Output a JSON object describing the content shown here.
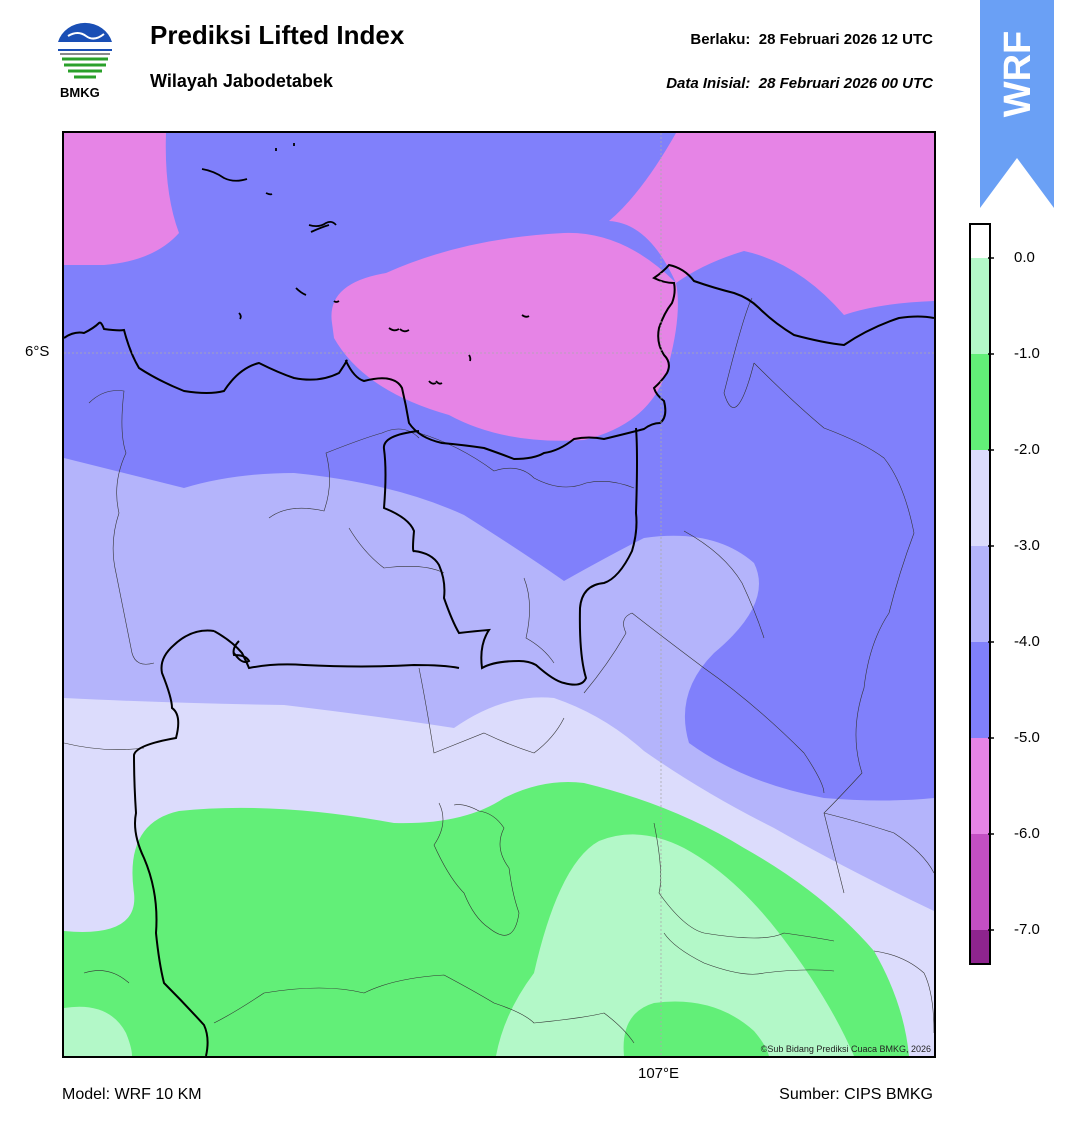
{
  "header": {
    "title": "Prediksi Lifted Index",
    "subtitle": "Wilayah Jabodetabek",
    "valid_label": "Berlaku:",
    "valid_time": "28 Februari 2026 12 UTC",
    "init_label": "Data Inisial:",
    "init_time": "28 Februari 2026 00 UTC"
  },
  "logo": {
    "text": "BMKG",
    "icon": "bmkg-logo-icon"
  },
  "badge": {
    "text": "WRF",
    "color": "#6aa0f5"
  },
  "map": {
    "lat_label": "6°S",
    "lon_label": "107°E",
    "copyright": "©Sub Bidang Prediksi Cuaca BMKG, 2026"
  },
  "colorbar": {
    "ticks": [
      "0.0",
      "-1.0",
      "-2.0",
      "-3.0",
      "-4.0",
      "-5.0",
      "-6.0",
      "-7.0"
    ],
    "bands": [
      {
        "range": "0 to -1",
        "color": "#b3f8c8"
      },
      {
        "range": "-1 to -2",
        "color": "#62ef78"
      },
      {
        "range": "-2 to -3",
        "color": "#dcdcfc"
      },
      {
        "range": "-3 to -4",
        "color": "#b4b4fb"
      },
      {
        "range": "-4 to -5",
        "color": "#8080fb"
      },
      {
        "range": "-5 to -6",
        "color": "#e684e6"
      },
      {
        "range": "-6 to -7",
        "color": "#c34fc3"
      },
      {
        "range": "< -7",
        "color": "#8e248e"
      }
    ]
  },
  "footer": {
    "model": "Model: WRF 10 KM",
    "source": "Sumber: CIPS BMKG"
  }
}
